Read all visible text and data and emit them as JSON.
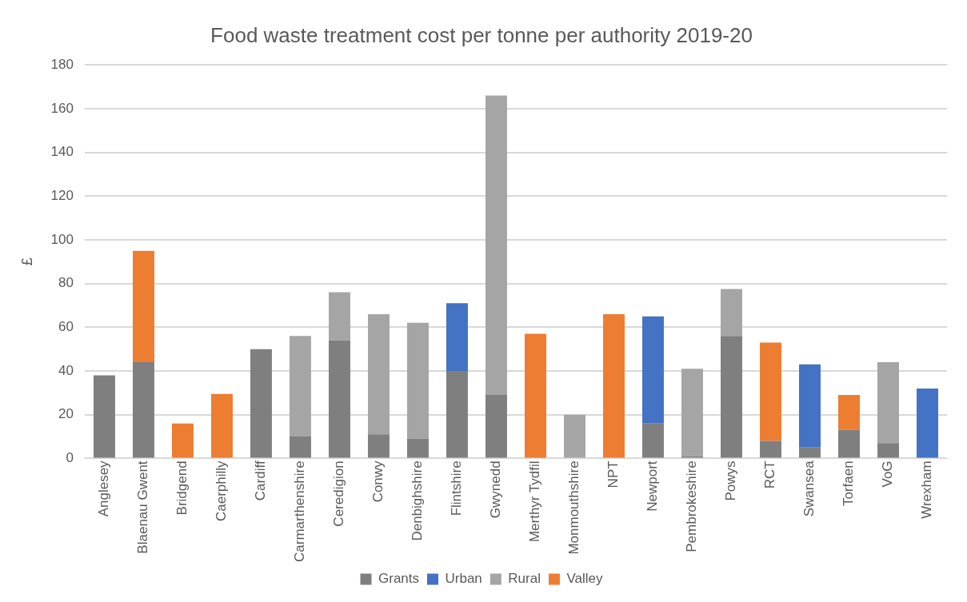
{
  "chart_data": {
    "type": "bar",
    "title": "Food waste treatment cost per tonne per authority 2019-20",
    "ylabel": "£",
    "categories": [
      "Anglesey",
      "Blaenau Gwent",
      "Bridgend",
      "Caerphilly",
      "Cardiff",
      "Carmarthenshire",
      "Ceredigion",
      "Conwy",
      "Denbighshire",
      "Flintshire",
      "Gwynedd",
      "Merthyr Tydfil",
      "Monmouthshire",
      "NPT",
      "Newport",
      "Pembrokeshire",
      "Powys",
      "RCT",
      "Swansea",
      "Torfaen",
      "VoG",
      "Wrexham"
    ],
    "series": [
      {
        "name": "Grants",
        "color": "#7f7f7f",
        "values": [
          38,
          44,
          null,
          null,
          50,
          10,
          54,
          11,
          9,
          40,
          29,
          null,
          null,
          null,
          16,
          1,
          56,
          8,
          5,
          13,
          7,
          null
        ]
      },
      {
        "name": "Urban",
        "color": "#4472c4",
        "values": [
          null,
          null,
          null,
          null,
          null,
          null,
          null,
          null,
          null,
          31,
          null,
          null,
          null,
          null,
          49,
          null,
          null,
          null,
          38,
          null,
          null,
          32
        ]
      },
      {
        "name": "Rural",
        "color": "#a5a5a5",
        "values": [
          null,
          null,
          null,
          null,
          null,
          46,
          22,
          55,
          53,
          null,
          137,
          null,
          20,
          null,
          null,
          40,
          21.5,
          null,
          null,
          null,
          37,
          null
        ]
      },
      {
        "name": "Valley",
        "color": "#ed7d31",
        "values": [
          null,
          51,
          16,
          29.5,
          null,
          null,
          null,
          null,
          null,
          null,
          null,
          57,
          null,
          66,
          null,
          null,
          null,
          45,
          null,
          16,
          null,
          null
        ]
      }
    ],
    "stacked": true,
    "ylim": [
      0,
      180
    ],
    "yticks": [
      0,
      20,
      40,
      60,
      80,
      100,
      120,
      140,
      160,
      180
    ],
    "grid": "y",
    "legend": "bottom"
  }
}
